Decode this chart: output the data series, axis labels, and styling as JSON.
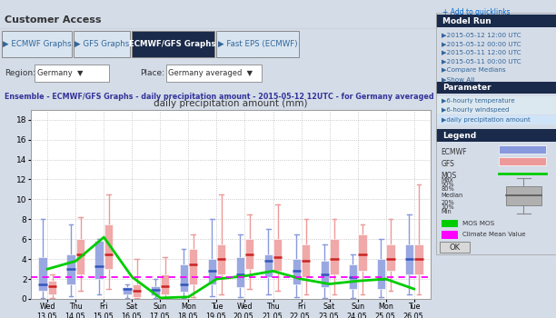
{
  "title": "daily precipitation amount (mm)",
  "subtitle": "Ensemble - ECMWF/GFS Graphs - daily precipitation amount - 2015-05-12 12UTC - for Germany averaged",
  "header": "Customer Access",
  "ylim": [
    0,
    19
  ],
  "yticks": [
    0,
    2,
    4,
    6,
    8,
    10,
    12,
    14,
    16,
    18
  ],
  "dates": [
    "Wed\n13.05.",
    "Thu\n14.05.",
    "Fri\n15.05.",
    "Sat\n16.05.",
    "Sun\n17.05.",
    "Mon\n18.05.",
    "Tue\n19.05.",
    "Wed\n20.05.",
    "Thu\n21.05.",
    "Fri\n22.05.",
    "Sat\n23.05.",
    "Sun\n24.05.",
    "Mon\n25.05.",
    "Tue\n26.05."
  ],
  "ecmwf_boxes": [
    {
      "med": 1.5,
      "q1": 0.8,
      "q3": 4.2,
      "whislo": 0.1,
      "whishi": 8.0
    },
    {
      "med": 3.0,
      "q1": 1.5,
      "q3": 4.5,
      "whislo": 0.3,
      "whishi": 7.5
    },
    {
      "med": 3.3,
      "q1": 2.0,
      "q3": 5.8,
      "whislo": 0.5,
      "whishi": 6.0
    },
    {
      "med": 1.0,
      "q1": 0.5,
      "q3": 1.2,
      "whislo": 0.05,
      "whishi": 1.5
    },
    {
      "med": 0.9,
      "q1": 0.4,
      "q3": 1.3,
      "whislo": 0.05,
      "whishi": 2.0
    },
    {
      "med": 1.5,
      "q1": 0.7,
      "q3": 3.5,
      "whislo": 0.1,
      "whishi": 5.0
    },
    {
      "med": 2.8,
      "q1": 1.5,
      "q3": 4.0,
      "whislo": 0.3,
      "whishi": 8.0
    },
    {
      "med": 2.5,
      "q1": 1.2,
      "q3": 4.2,
      "whislo": 0.2,
      "whishi": 6.5
    },
    {
      "med": 3.8,
      "q1": 2.2,
      "q3": 4.5,
      "whislo": 0.5,
      "whishi": 7.0
    },
    {
      "med": 2.8,
      "q1": 1.5,
      "q3": 4.0,
      "whislo": 0.2,
      "whishi": 6.5
    },
    {
      "med": 2.5,
      "q1": 1.2,
      "q3": 3.8,
      "whislo": 0.1,
      "whishi": 5.5
    },
    {
      "med": 2.2,
      "q1": 1.0,
      "q3": 3.5,
      "whislo": 0.1,
      "whishi": 4.5
    },
    {
      "med": 2.0,
      "q1": 1.0,
      "q3": 4.0,
      "whislo": 0.2,
      "whishi": 6.0
    },
    {
      "med": 4.0,
      "q1": 2.5,
      "q3": 5.5,
      "whislo": 0.5,
      "whishi": 8.5
    }
  ],
  "gfs_boxes": [
    {
      "med": 1.3,
      "q1": 0.5,
      "q3": 1.8,
      "whislo": 0.05,
      "whishi": 2.5
    },
    {
      "med": 4.5,
      "q1": 2.5,
      "q3": 6.0,
      "whislo": 0.8,
      "whishi": 8.2
    },
    {
      "med": 4.5,
      "q1": 3.0,
      "q3": 7.5,
      "whislo": 1.0,
      "whishi": 10.5
    },
    {
      "med": 0.8,
      "q1": 0.2,
      "q3": 1.5,
      "whislo": 0.05,
      "whishi": 4.0
    },
    {
      "med": 1.3,
      "q1": 0.5,
      "q3": 2.5,
      "whislo": 0.05,
      "whishi": 4.2
    },
    {
      "med": 3.5,
      "q1": 1.5,
      "q3": 5.0,
      "whislo": 0.2,
      "whishi": 6.5
    },
    {
      "med": 4.0,
      "q1": 2.5,
      "q3": 5.5,
      "whislo": 0.5,
      "whishi": 10.5
    },
    {
      "med": 4.5,
      "q1": 3.0,
      "q3": 6.0,
      "whislo": 1.0,
      "whishi": 8.5
    },
    {
      "med": 4.2,
      "q1": 2.8,
      "q3": 6.0,
      "whislo": 0.8,
      "whishi": 9.5
    },
    {
      "med": 3.8,
      "q1": 2.2,
      "q3": 5.5,
      "whislo": 0.5,
      "whishi": 8.0
    },
    {
      "med": 4.0,
      "q1": 2.5,
      "q3": 6.0,
      "whislo": 0.5,
      "whishi": 8.0
    },
    {
      "med": 4.5,
      "q1": 2.8,
      "q3": 6.5,
      "whislo": 0.5,
      "whishi": 7.5
    },
    {
      "med": 4.0,
      "q1": 2.8,
      "q3": 5.5,
      "whislo": 0.8,
      "whishi": 8.0
    },
    {
      "med": 4.0,
      "q1": 2.5,
      "q3": 5.5,
      "whislo": 0.5,
      "whishi": 11.5
    }
  ],
  "mos_line": [
    3.0,
    3.8,
    6.2,
    2.2,
    0.1,
    0.2,
    2.0,
    2.3,
    2.8,
    2.0,
    1.5,
    1.8,
    2.0,
    1.0
  ],
  "climate_mean": 2.2,
  "ecmwf_color": "#8899dd",
  "ecmwf_median_color": "#3355bb",
  "gfs_color": "#ee9999",
  "gfs_median_color": "#cc2222",
  "mos_color": "#00cc00",
  "climate_color": "#ff00ff",
  "bg_color": "#d4dce8",
  "plot_bg": "#ffffff",
  "tab_bg": "#1a2a4a",
  "tab_inactive_bg": "#d8e4f0",
  "right_panel_bg": "#dce8f0",
  "section_header_bg": "#1a2a4a",
  "nav_bar_bg": "#c8d8e8",
  "top_header_bg": "#f0f0f0",
  "model_run_items": [
    "2015-05-12 12:00 UTC",
    "2015-05-12 00:00 UTC",
    "2015-05-11 12:00 UTC",
    "2015-05-11 00:00 UTC",
    "Compare Medians",
    "Show All"
  ],
  "param_items": [
    "6-hourly temperature",
    "6-hourly windspeed",
    "daily precipitation amount"
  ],
  "tabs": [
    "ECMWF Graphs",
    "GFS Graphs",
    "ECMWF/GFS Graphs",
    "Fast EPS (ECMWF)"
  ]
}
